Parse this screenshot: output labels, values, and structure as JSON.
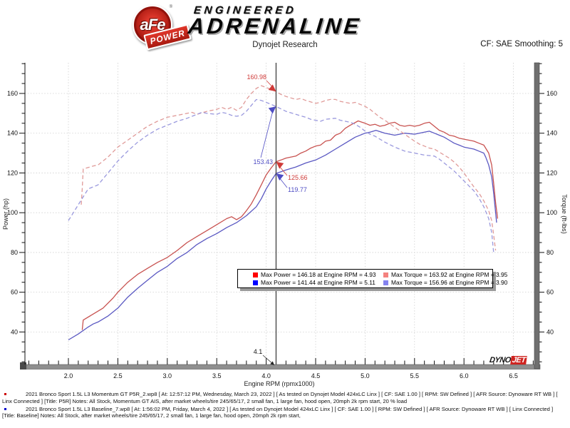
{
  "header": {
    "logo": {
      "circle_text": "aFe",
      "reg": "®",
      "banner_text": "POWER",
      "line1": "ENGINEERED",
      "line2": "ADRENALINE"
    },
    "subtitle": "Dynojet Research",
    "cf_label": "CF: SAE Smoothing: 5"
  },
  "chart_data": {
    "type": "line",
    "title": "",
    "xlabel": "Engine RPM (rpmx1000)",
    "ylabel_left": "Power (hp)",
    "ylabel_right": "Torque (ft-lbs)",
    "x_range": [
      1.56,
      6.72
    ],
    "y_range": [
      24,
      175
    ],
    "x_major_ticks": [
      2.0,
      2.5,
      3.0,
      3.5,
      4.0,
      4.5,
      5.0,
      5.5,
      6.0,
      6.5
    ],
    "x_minor_step": 0.1,
    "y_major_ticks": [
      40,
      60,
      80,
      100,
      120,
      140,
      160
    ],
    "y_minor_step": 5,
    "grid": "dashed",
    "legend_position": "center-bottom",
    "cursor": {
      "rpm": 4.1,
      "label": "4.1"
    },
    "series": [
      {
        "name": "Momentum GT Power",
        "unit": "hp",
        "axis": "left",
        "style": "solid",
        "color": "#c85250",
        "points": [
          [
            2.14,
            41
          ],
          [
            2.15,
            46
          ],
          [
            2.25,
            49
          ],
          [
            2.35,
            52
          ],
          [
            2.45,
            57
          ],
          [
            2.5,
            60
          ],
          [
            2.6,
            65
          ],
          [
            2.7,
            69
          ],
          [
            2.8,
            72
          ],
          [
            2.9,
            75
          ],
          [
            3.0,
            77.5
          ],
          [
            3.1,
            81
          ],
          [
            3.2,
            85
          ],
          [
            3.3,
            88
          ],
          [
            3.4,
            91
          ],
          [
            3.5,
            94
          ],
          [
            3.6,
            97
          ],
          [
            3.65,
            98
          ],
          [
            3.7,
            96.5
          ],
          [
            3.75,
            98
          ],
          [
            3.8,
            101
          ],
          [
            3.85,
            104.5
          ],
          [
            3.9,
            109
          ],
          [
            3.95,
            114
          ],
          [
            4.0,
            119
          ],
          [
            4.05,
            122.5
          ],
          [
            4.1,
            125.66
          ],
          [
            4.15,
            126.5
          ],
          [
            4.2,
            127.5
          ],
          [
            4.3,
            128.5
          ],
          [
            4.35,
            130
          ],
          [
            4.4,
            131
          ],
          [
            4.45,
            132.5
          ],
          [
            4.5,
            133.5
          ],
          [
            4.55,
            134
          ],
          [
            4.6,
            136
          ],
          [
            4.65,
            136.5
          ],
          [
            4.7,
            139
          ],
          [
            4.75,
            140
          ],
          [
            4.8,
            142.5
          ],
          [
            4.85,
            144
          ],
          [
            4.93,
            146.18
          ],
          [
            5.0,
            145
          ],
          [
            5.05,
            144
          ],
          [
            5.1,
            144.5
          ],
          [
            5.15,
            143.5
          ],
          [
            5.2,
            144
          ],
          [
            5.25,
            145
          ],
          [
            5.3,
            145.5
          ],
          [
            5.35,
            144
          ],
          [
            5.4,
            143.5
          ],
          [
            5.45,
            144
          ],
          [
            5.5,
            143.5
          ],
          [
            5.55,
            144
          ],
          [
            5.6,
            145
          ],
          [
            5.65,
            145.5
          ],
          [
            5.7,
            143.5
          ],
          [
            5.75,
            141.5
          ],
          [
            5.8,
            140.5
          ],
          [
            5.85,
            139
          ],
          [
            5.9,
            138.5
          ],
          [
            5.95,
            137.5
          ],
          [
            6.0,
            137
          ],
          [
            6.05,
            136.5
          ],
          [
            6.1,
            136
          ],
          [
            6.15,
            135
          ],
          [
            6.2,
            134
          ],
          [
            6.25,
            130
          ],
          [
            6.28,
            124
          ],
          [
            6.3,
            115
          ],
          [
            6.32,
            105
          ],
          [
            6.34,
            97
          ]
        ]
      },
      {
        "name": "Baseline Power",
        "unit": "hp",
        "axis": "left",
        "style": "solid",
        "color": "#5a58c2",
        "points": [
          [
            2.0,
            36
          ],
          [
            2.1,
            39
          ],
          [
            2.2,
            42.5
          ],
          [
            2.25,
            44
          ],
          [
            2.3,
            45
          ],
          [
            2.4,
            48
          ],
          [
            2.5,
            52
          ],
          [
            2.6,
            57.5
          ],
          [
            2.7,
            62
          ],
          [
            2.8,
            66
          ],
          [
            2.9,
            70
          ],
          [
            3.0,
            73
          ],
          [
            3.1,
            77
          ],
          [
            3.2,
            80
          ],
          [
            3.3,
            84
          ],
          [
            3.4,
            87
          ],
          [
            3.5,
            89.5
          ],
          [
            3.55,
            91
          ],
          [
            3.6,
            92.5
          ],
          [
            3.7,
            95
          ],
          [
            3.8,
            98.5
          ],
          [
            3.9,
            103
          ],
          [
            3.95,
            107
          ],
          [
            4.0,
            112
          ],
          [
            4.05,
            116
          ],
          [
            4.1,
            119.77
          ],
          [
            4.2,
            121.5
          ],
          [
            4.3,
            123
          ],
          [
            4.4,
            125
          ],
          [
            4.5,
            126.5
          ],
          [
            4.6,
            129
          ],
          [
            4.7,
            132
          ],
          [
            4.8,
            135
          ],
          [
            4.9,
            138
          ],
          [
            5.0,
            140
          ],
          [
            5.05,
            140.5
          ],
          [
            5.11,
            141.44
          ],
          [
            5.2,
            140
          ],
          [
            5.25,
            139.5
          ],
          [
            5.3,
            139
          ],
          [
            5.4,
            140
          ],
          [
            5.5,
            139.5
          ],
          [
            5.6,
            140.5
          ],
          [
            5.65,
            141
          ],
          [
            5.7,
            140
          ],
          [
            5.75,
            139
          ],
          [
            5.8,
            138
          ],
          [
            5.85,
            136.5
          ],
          [
            5.9,
            135
          ],
          [
            5.95,
            134
          ],
          [
            6.0,
            133
          ],
          [
            6.05,
            132.5
          ],
          [
            6.1,
            132
          ],
          [
            6.15,
            131
          ],
          [
            6.2,
            130
          ],
          [
            6.22,
            128
          ],
          [
            6.25,
            124
          ],
          [
            6.28,
            118
          ],
          [
            6.3,
            110
          ],
          [
            6.33,
            95
          ]
        ]
      },
      {
        "name": "Momentum GT Torque",
        "unit": "ft-lbs",
        "axis": "right",
        "style": "dashed",
        "color": "#e09a98",
        "points": [
          [
            2.13,
            104
          ],
          [
            2.14,
            112
          ],
          [
            2.15,
            122
          ],
          [
            2.25,
            123.5
          ],
          [
            2.3,
            124
          ],
          [
            2.4,
            128
          ],
          [
            2.5,
            133
          ],
          [
            2.6,
            136.5
          ],
          [
            2.7,
            140
          ],
          [
            2.8,
            143.5
          ],
          [
            2.9,
            146
          ],
          [
            3.0,
            148
          ],
          [
            3.1,
            149
          ],
          [
            3.2,
            150
          ],
          [
            3.25,
            150.5
          ],
          [
            3.3,
            149.5
          ],
          [
            3.4,
            151
          ],
          [
            3.5,
            152
          ],
          [
            3.55,
            153
          ],
          [
            3.6,
            152
          ],
          [
            3.65,
            153
          ],
          [
            3.7,
            151.5
          ],
          [
            3.75,
            153
          ],
          [
            3.8,
            157
          ],
          [
            3.85,
            160
          ],
          [
            3.9,
            162.5
          ],
          [
            3.95,
            163.92
          ],
          [
            4.0,
            163
          ],
          [
            4.05,
            162
          ],
          [
            4.1,
            160.98
          ],
          [
            4.15,
            159.5
          ],
          [
            4.2,
            158.5
          ],
          [
            4.3,
            157
          ],
          [
            4.35,
            157.5
          ],
          [
            4.4,
            156.5
          ],
          [
            4.5,
            155
          ],
          [
            4.55,
            155.5
          ],
          [
            4.6,
            156.5
          ],
          [
            4.65,
            157
          ],
          [
            4.7,
            157
          ],
          [
            4.75,
            156
          ],
          [
            4.8,
            155.5
          ],
          [
            4.85,
            155
          ],
          [
            4.9,
            155.5
          ],
          [
            4.95,
            154.5
          ],
          [
            5.0,
            153.5
          ],
          [
            5.05,
            152
          ],
          [
            5.1,
            150
          ],
          [
            5.15,
            148
          ],
          [
            5.2,
            146.5
          ],
          [
            5.3,
            143
          ],
          [
            5.4,
            139.5
          ],
          [
            5.5,
            136
          ],
          [
            5.55,
            134.5
          ],
          [
            5.6,
            133.5
          ],
          [
            5.65,
            132.5
          ],
          [
            5.7,
            132
          ],
          [
            5.75,
            130.5
          ],
          [
            5.8,
            129
          ],
          [
            5.85,
            127.5
          ],
          [
            5.9,
            125.5
          ],
          [
            5.95,
            123
          ],
          [
            6.0,
            120
          ],
          [
            6.05,
            116.5
          ],
          [
            6.1,
            113
          ],
          [
            6.15,
            110
          ],
          [
            6.2,
            106
          ],
          [
            6.25,
            101
          ],
          [
            6.28,
            96
          ],
          [
            6.3,
            89
          ],
          [
            6.32,
            81
          ]
        ]
      },
      {
        "name": "Baseline Torque",
        "unit": "ft-lbs",
        "axis": "right",
        "style": "dashed",
        "color": "#9a99de",
        "points": [
          [
            2.0,
            96
          ],
          [
            2.05,
            100
          ],
          [
            2.1,
            104
          ],
          [
            2.15,
            108
          ],
          [
            2.2,
            112
          ],
          [
            2.25,
            113
          ],
          [
            2.3,
            114
          ],
          [
            2.35,
            117
          ],
          [
            2.4,
            120
          ],
          [
            2.5,
            126
          ],
          [
            2.6,
            131
          ],
          [
            2.7,
            135.5
          ],
          [
            2.8,
            139
          ],
          [
            2.9,
            142
          ],
          [
            3.0,
            144
          ],
          [
            3.1,
            146
          ],
          [
            3.2,
            147.5
          ],
          [
            3.3,
            149.5
          ],
          [
            3.35,
            150.5
          ],
          [
            3.4,
            150
          ],
          [
            3.5,
            149.5
          ],
          [
            3.55,
            150.5
          ],
          [
            3.6,
            150
          ],
          [
            3.65,
            149
          ],
          [
            3.7,
            148.5
          ],
          [
            3.75,
            149
          ],
          [
            3.8,
            151
          ],
          [
            3.85,
            154
          ],
          [
            3.9,
            156.96
          ],
          [
            3.95,
            156.5
          ],
          [
            4.0,
            155.5
          ],
          [
            4.05,
            154.5
          ],
          [
            4.1,
            153.43
          ],
          [
            4.2,
            151
          ],
          [
            4.3,
            149.5
          ],
          [
            4.4,
            148
          ],
          [
            4.45,
            147
          ],
          [
            4.5,
            146.5
          ],
          [
            4.55,
            146
          ],
          [
            4.6,
            147
          ],
          [
            4.7,
            147.5
          ],
          [
            4.75,
            146.5
          ],
          [
            4.8,
            146
          ],
          [
            4.85,
            145.5
          ],
          [
            4.9,
            144.5
          ],
          [
            4.95,
            143
          ],
          [
            5.0,
            141
          ],
          [
            5.05,
            139.5
          ],
          [
            5.1,
            138.5
          ],
          [
            5.15,
            137
          ],
          [
            5.2,
            135.5
          ],
          [
            5.3,
            133
          ],
          [
            5.4,
            131
          ],
          [
            5.5,
            130
          ],
          [
            5.6,
            129
          ],
          [
            5.7,
            128.5
          ],
          [
            5.75,
            127
          ],
          [
            5.8,
            125
          ],
          [
            5.85,
            123
          ],
          [
            5.9,
            121
          ],
          [
            5.95,
            118.5
          ],
          [
            6.0,
            116
          ],
          [
            6.05,
            113.5
          ],
          [
            6.1,
            111
          ],
          [
            6.15,
            107.5
          ],
          [
            6.2,
            103
          ],
          [
            6.25,
            97
          ],
          [
            6.28,
            90
          ],
          [
            6.3,
            80
          ]
        ]
      }
    ],
    "annotations": [
      {
        "text": "160.98",
        "value": 160.98,
        "rpm": 4.1,
        "color": "#cf3a38"
      },
      {
        "text": "153.43",
        "value": 153.43,
        "rpm": 4.1,
        "color": "#4f4dc4"
      },
      {
        "text": "125.66",
        "value": 125.66,
        "rpm": 4.1,
        "color": "#cf3a38"
      },
      {
        "text": "119.77",
        "value": 119.77,
        "rpm": 4.1,
        "color": "#4f4dc4"
      }
    ],
    "legend": [
      {
        "color": "#ff0000",
        "text": "Max Power = 146.18 at Engine RPM = 4.93"
      },
      {
        "color": "#f4827f",
        "text": "Max Torque = 163.92 at Engine RPM = 3.95"
      },
      {
        "color": "#0000ff",
        "text": "Max Power = 141.44 at Engine RPM = 5.11"
      },
      {
        "color": "#8583f0",
        "text": "Max Torque = 156.96 at Engine RPM = 3.90"
      }
    ]
  },
  "watermark": {
    "part1": "DYNO",
    "part2": "JET"
  },
  "footer": {
    "runs": [
      {
        "bullet_color": "#cc0000",
        "text": "2021 Bronco Sport 1.5L L3 Momentum GT P5R_2.wp8 [ At: 12:57:12 PM, Wednesday, March 23, 2022 ] [ As tested on Dynojet Model 424xLC Linx ] [ CF: SAE 1.00 ] [ RPM: SW Defined ] [ AFR Source: Dynoware RT WB ] [ Linx Connected ] [Title: P5R]  Notes: All Stock, Momentum GT AIS, after market wheels/tire 245/65/17, 2 small fan, 1 large fan, hood open,  20mph 2k rpm start, 20 % load"
      },
      {
        "bullet_color": "#0000cc",
        "text": "2021 Bronco Sport 1.5L L3 Baseline_7.wp8 [ At: 1:56:02 PM, Friday, March 4, 2022 ] [ As tested on Dynojet Model 424xLC Linx ] [ CF: SAE 1.00 ] [ RPM: SW Defined ] [ AFR Source: Dynoware RT WB ] [ Linx Connected ] [Title: Baseline]  Notes: All Stock, after market wheels/tire 245/65/17, 2 small fan, 1 large fan, hood open,  20mph 2k rpm start,"
      }
    ]
  }
}
